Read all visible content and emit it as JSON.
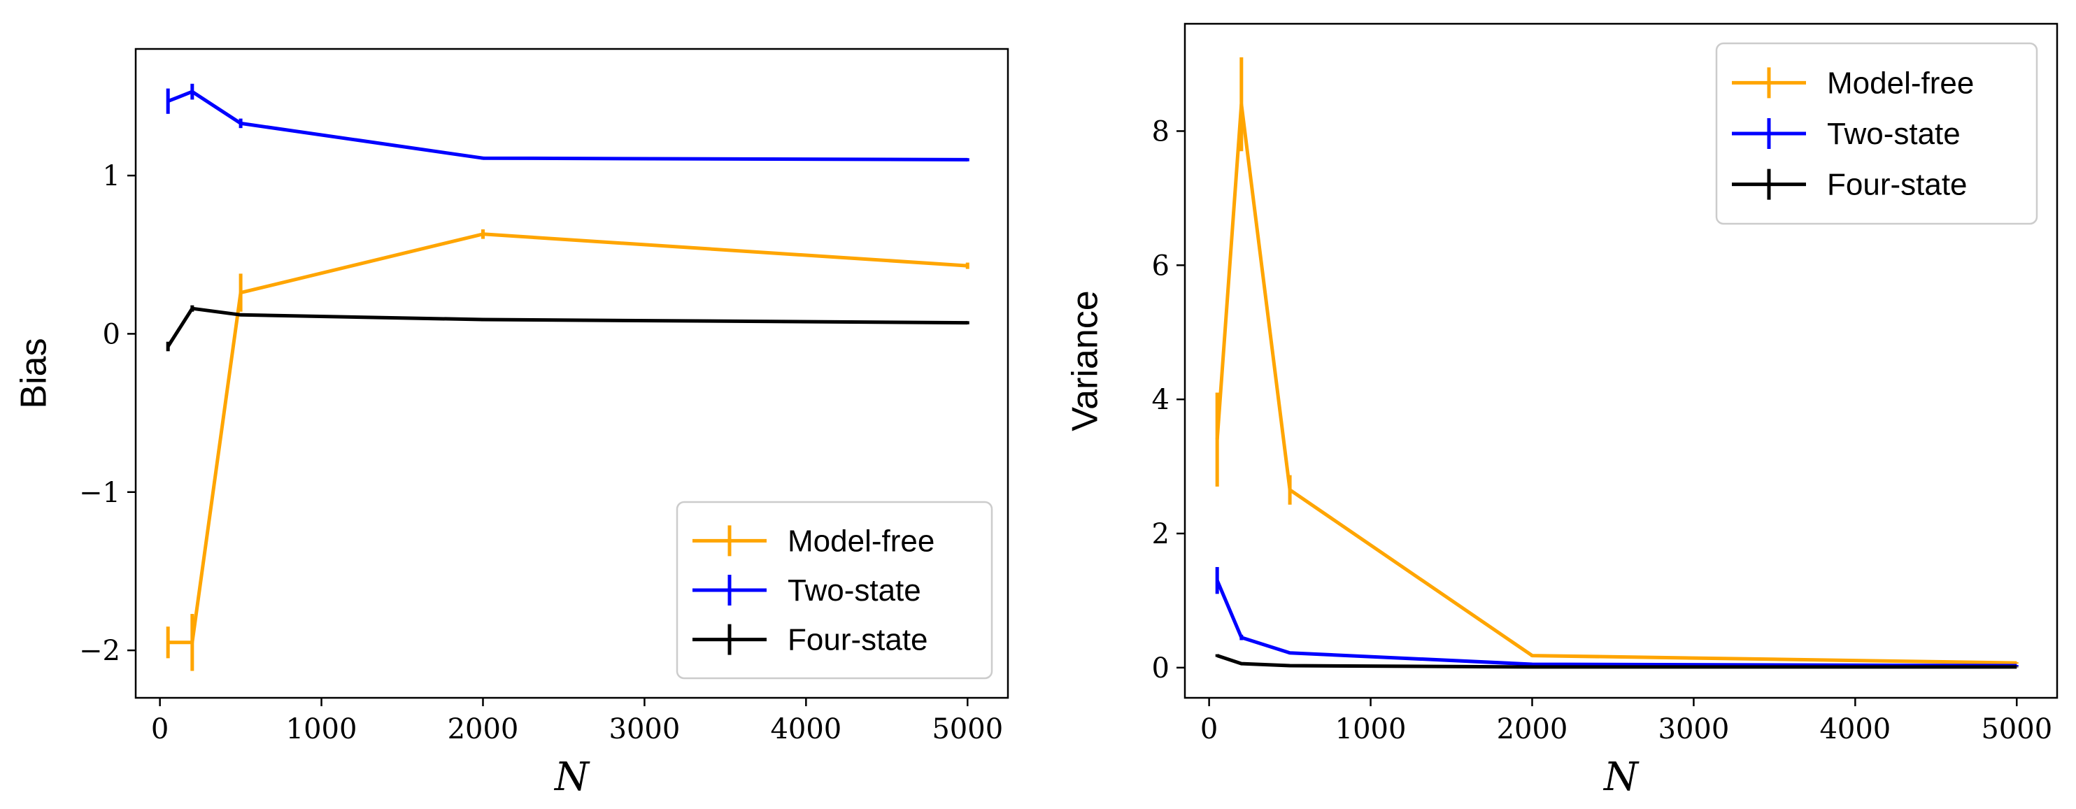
{
  "chart_data": [
    {
      "type": "line",
      "title": "",
      "xlabel": "N",
      "ylabel": "Bias",
      "xlim": [
        -150,
        5250
      ],
      "ylim": [
        -2.3,
        1.8
      ],
      "xticks": [
        0,
        1000,
        2000,
        3000,
        4000,
        5000
      ],
      "xtick_labels": [
        "0",
        "1000",
        "2000",
        "3000",
        "4000",
        "5000"
      ],
      "yticks": [
        -2,
        -1,
        0,
        1
      ],
      "ytick_labels": [
        "−2",
        "−1",
        "0",
        "1"
      ],
      "legend_position": "lower-right",
      "x": [
        50,
        200,
        500,
        2000,
        5000
      ],
      "series": [
        {
          "name": "Model-free",
          "color": "#FFA500",
          "values": [
            -1.95,
            -1.95,
            0.26,
            0.63,
            0.43
          ],
          "errors": [
            0.1,
            0.18,
            0.12,
            0.03,
            0.02
          ]
        },
        {
          "name": "Two-state",
          "color": "#0000FF",
          "values": [
            1.47,
            1.53,
            1.33,
            1.11,
            1.1
          ],
          "errors": [
            0.08,
            0.05,
            0.03,
            0.01,
            0.01
          ]
        },
        {
          "name": "Four-state",
          "color": "#000000",
          "values": [
            -0.08,
            0.16,
            0.12,
            0.09,
            0.07
          ],
          "errors": [
            0.03,
            0.02,
            0.01,
            0.01,
            0.01
          ]
        }
      ]
    },
    {
      "type": "line",
      "title": "",
      "xlabel": "N",
      "ylabel": "Variance",
      "xlim": [
        -150,
        5250
      ],
      "ylim": [
        -0.45,
        9.6
      ],
      "xticks": [
        0,
        1000,
        2000,
        3000,
        4000,
        5000
      ],
      "xtick_labels": [
        "0",
        "1000",
        "2000",
        "3000",
        "4000",
        "5000"
      ],
      "yticks": [
        0,
        2,
        4,
        6,
        8
      ],
      "ytick_labels": [
        "0",
        "2",
        "4",
        "6",
        "8"
      ],
      "legend_position": "upper-right",
      "x": [
        50,
        200,
        500,
        2000,
        5000
      ],
      "series": [
        {
          "name": "Model-free",
          "color": "#FFA500",
          "values": [
            3.4,
            8.4,
            2.65,
            0.18,
            0.07
          ],
          "errors": [
            0.7,
            0.7,
            0.22,
            0.02,
            0.01
          ]
        },
        {
          "name": "Two-state",
          "color": "#0000FF",
          "values": [
            1.3,
            0.45,
            0.22,
            0.05,
            0.03
          ],
          "errors": [
            0.2,
            0.04,
            0.02,
            0.01,
            0.01
          ]
        },
        {
          "name": "Four-state",
          "color": "#000000",
          "values": [
            0.18,
            0.06,
            0.03,
            0.01,
            0.01
          ],
          "errors": [
            0.02,
            0.01,
            0.01,
            0.005,
            0.005
          ]
        }
      ]
    }
  ]
}
